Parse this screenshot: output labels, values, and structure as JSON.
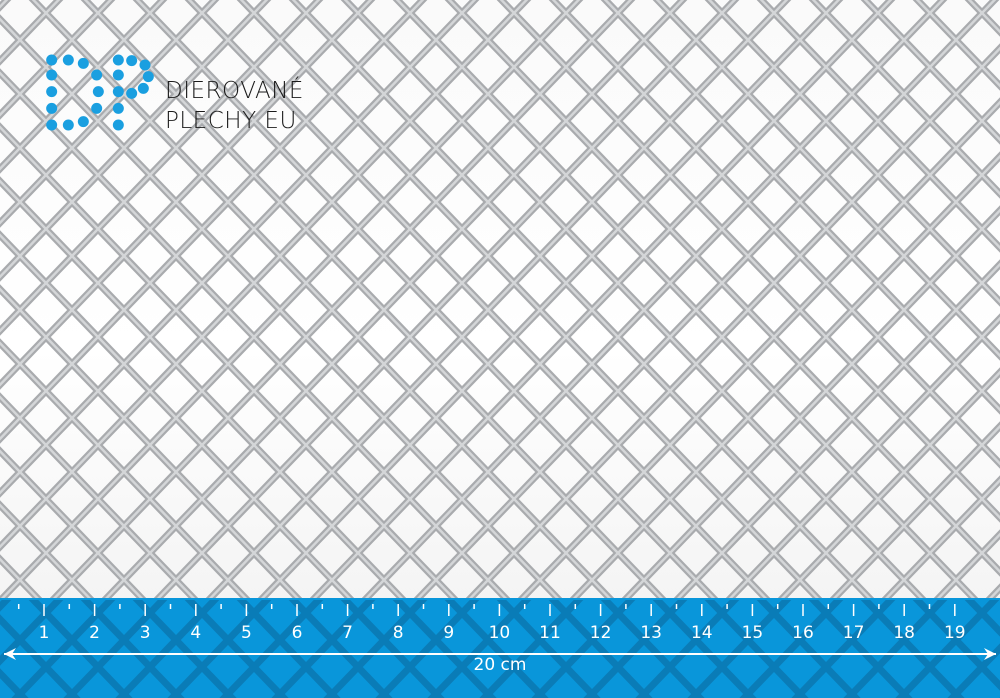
{
  "logo": {
    "line1": "DIEROVANÉ",
    "line2": "PLECHY EU",
    "monogram": "DP",
    "color": "#1a9fe0"
  },
  "ruler": {
    "color": "#0996da",
    "labels": [
      "1",
      "2",
      "3",
      "4",
      "5",
      "6",
      "7",
      "8",
      "9",
      "10",
      "11",
      "12",
      "13",
      "14",
      "15",
      "16",
      "17",
      "18",
      "19"
    ],
    "length_label": "20 cm"
  },
  "mesh": {
    "material": "expanded metal",
    "color": "#b4b6b8"
  }
}
